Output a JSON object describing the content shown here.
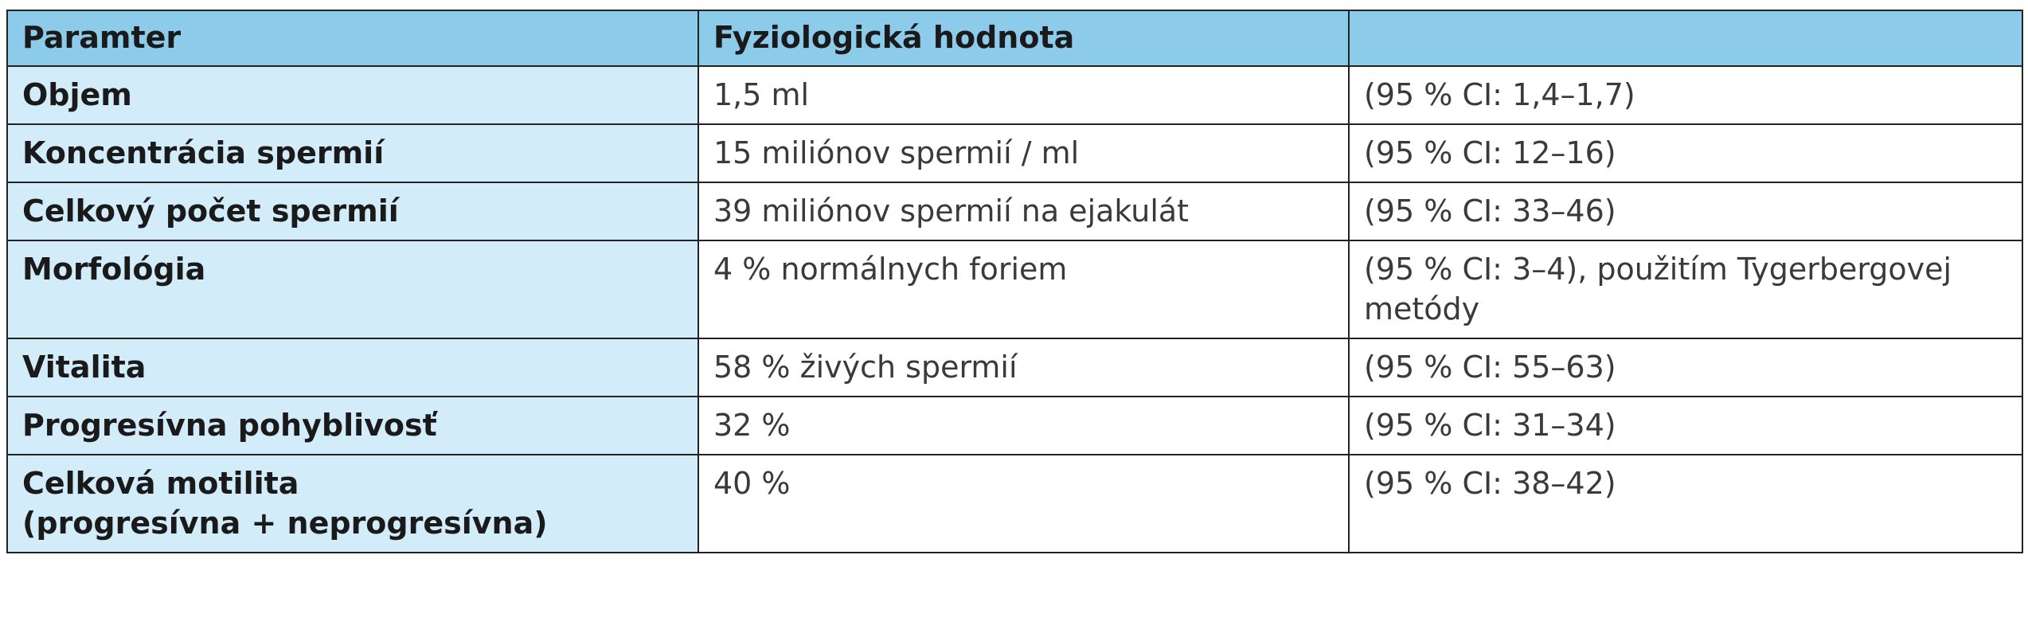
{
  "table": {
    "headers": [
      "Paramter",
      "Fyziologická hodnota",
      ""
    ],
    "rows": [
      {
        "parameter": "Objem",
        "value": "1,5 ml",
        "ci": "(95 % CI: 1,4–1,7)"
      },
      {
        "parameter": "Koncentrácia spermií",
        "value": "15 miliónov spermií / ml",
        "ci": "(95 % CI: 12–16)"
      },
      {
        "parameter": "Celkový počet spermií",
        "value": "39 miliónov spermií na ejakulát",
        "ci": "(95 % CI: 33–46)"
      },
      {
        "parameter": "Morfológia",
        "value": "4 % normálnych foriem",
        "ci": "(95 % CI: 3–4), použitím Tygerbergovej metódy"
      },
      {
        "parameter": "Vitalita",
        "value": "58 % živých spermií",
        "ci": "(95 % CI: 55–63)"
      },
      {
        "parameter": "Progresívna pohyblivosť",
        "value": "32 %",
        "ci": "(95 % CI: 31–34)"
      },
      {
        "parameter_line1": "Celková motilita",
        "parameter_line2": "(progresívna + neprogresívna)",
        "value": "40 %",
        "ci": "(95 % CI: 38–42)"
      }
    ]
  }
}
